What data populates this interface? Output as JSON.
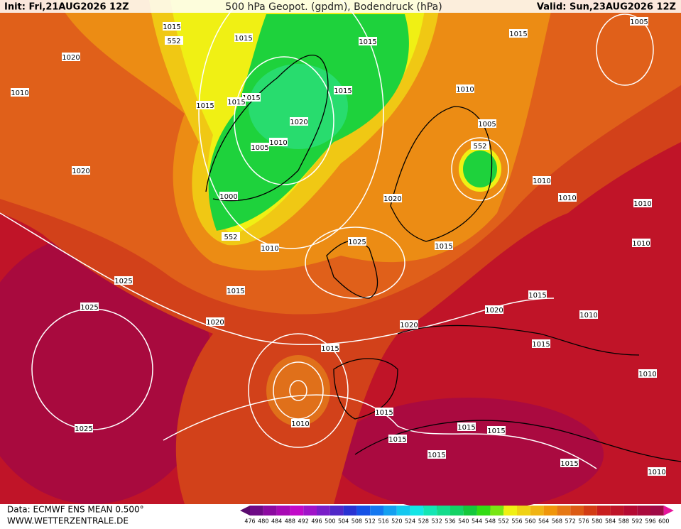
{
  "header": {
    "init": "Init: Fri,21AUG2026 12Z",
    "title": "500 hPa Geopot. (gpdm), Bodendruck (hPa)",
    "valid": "Valid: Sun,23AUG2026 12Z"
  },
  "map": {
    "isobar_labels": [
      1015,
      552,
      1015,
      1015,
      1015,
      1005,
      1020,
      1010,
      1015,
      1015,
      1015,
      1010,
      1015,
      1020,
      1005,
      552,
      1005,
      1010,
      1020,
      1010,
      1010,
      1000,
      1020,
      1010,
      552,
      1010,
      1025,
      1015,
      1010,
      1025,
      1015,
      1015,
      1025,
      1020,
      1010,
      1020,
      1020,
      1015,
      1015,
      1010,
      1015,
      1010,
      1025,
      1015,
      1015,
      1015,
      1015,
      1015,
      1010
    ]
  },
  "footer": {
    "source": "Data: ECMWF ENS MEAN 0.500°",
    "website": "WWW.WETTERZENTRALE.DE"
  },
  "colorbar": {
    "labels": [
      476,
      480,
      484,
      488,
      492,
      496,
      500,
      504,
      508,
      512,
      516,
      520,
      524,
      528,
      532,
      536,
      540,
      544,
      548,
      552,
      556,
      560,
      564,
      568,
      572,
      576,
      580,
      584,
      588,
      592,
      596,
      600
    ],
    "colors": [
      "#5a0a6e",
      "#6e0a86",
      "#8c0aa0",
      "#a80ab4",
      "#c20ac8",
      "#a014c8",
      "#7a1ec8",
      "#5028c8",
      "#2832d2",
      "#1450e6",
      "#1478f0",
      "#14a0f0",
      "#14c8f0",
      "#14e6e6",
      "#14e6b4",
      "#14dc8c",
      "#14d264",
      "#14c83c",
      "#32dc14",
      "#78e614",
      "#f0f014",
      "#f0d214",
      "#f0b414",
      "#f0960a",
      "#e67814",
      "#dc5a14",
      "#d23c14",
      "#c81e1e",
      "#be1428",
      "#b40a32",
      "#aa0a3c",
      "#a00a46",
      "#e6149b"
    ]
  }
}
